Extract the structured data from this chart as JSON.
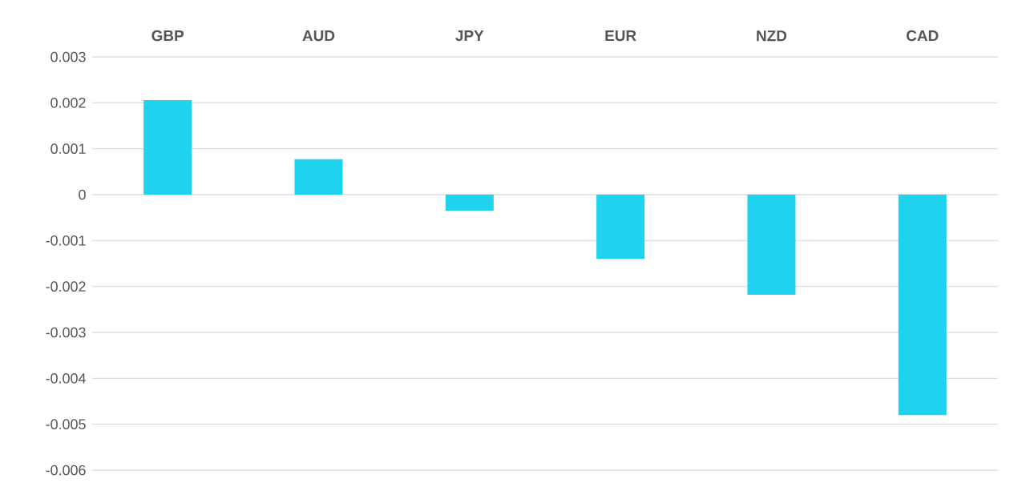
{
  "chart_data": {
    "type": "bar",
    "categories": [
      "GBP",
      "AUD",
      "JPY",
      "EUR",
      "NZD",
      "CAD"
    ],
    "values": [
      0.00206,
      0.00077,
      -0.00035,
      -0.0014,
      -0.00218,
      -0.0048
    ],
    "color": "#1fd3ef",
    "ylim": [
      -0.006,
      0.003
    ],
    "yticks": [
      -0.006,
      -0.005,
      -0.004,
      -0.003,
      -0.002,
      -0.001,
      0,
      0.001,
      0.002,
      0.003
    ],
    "grid": "y"
  }
}
